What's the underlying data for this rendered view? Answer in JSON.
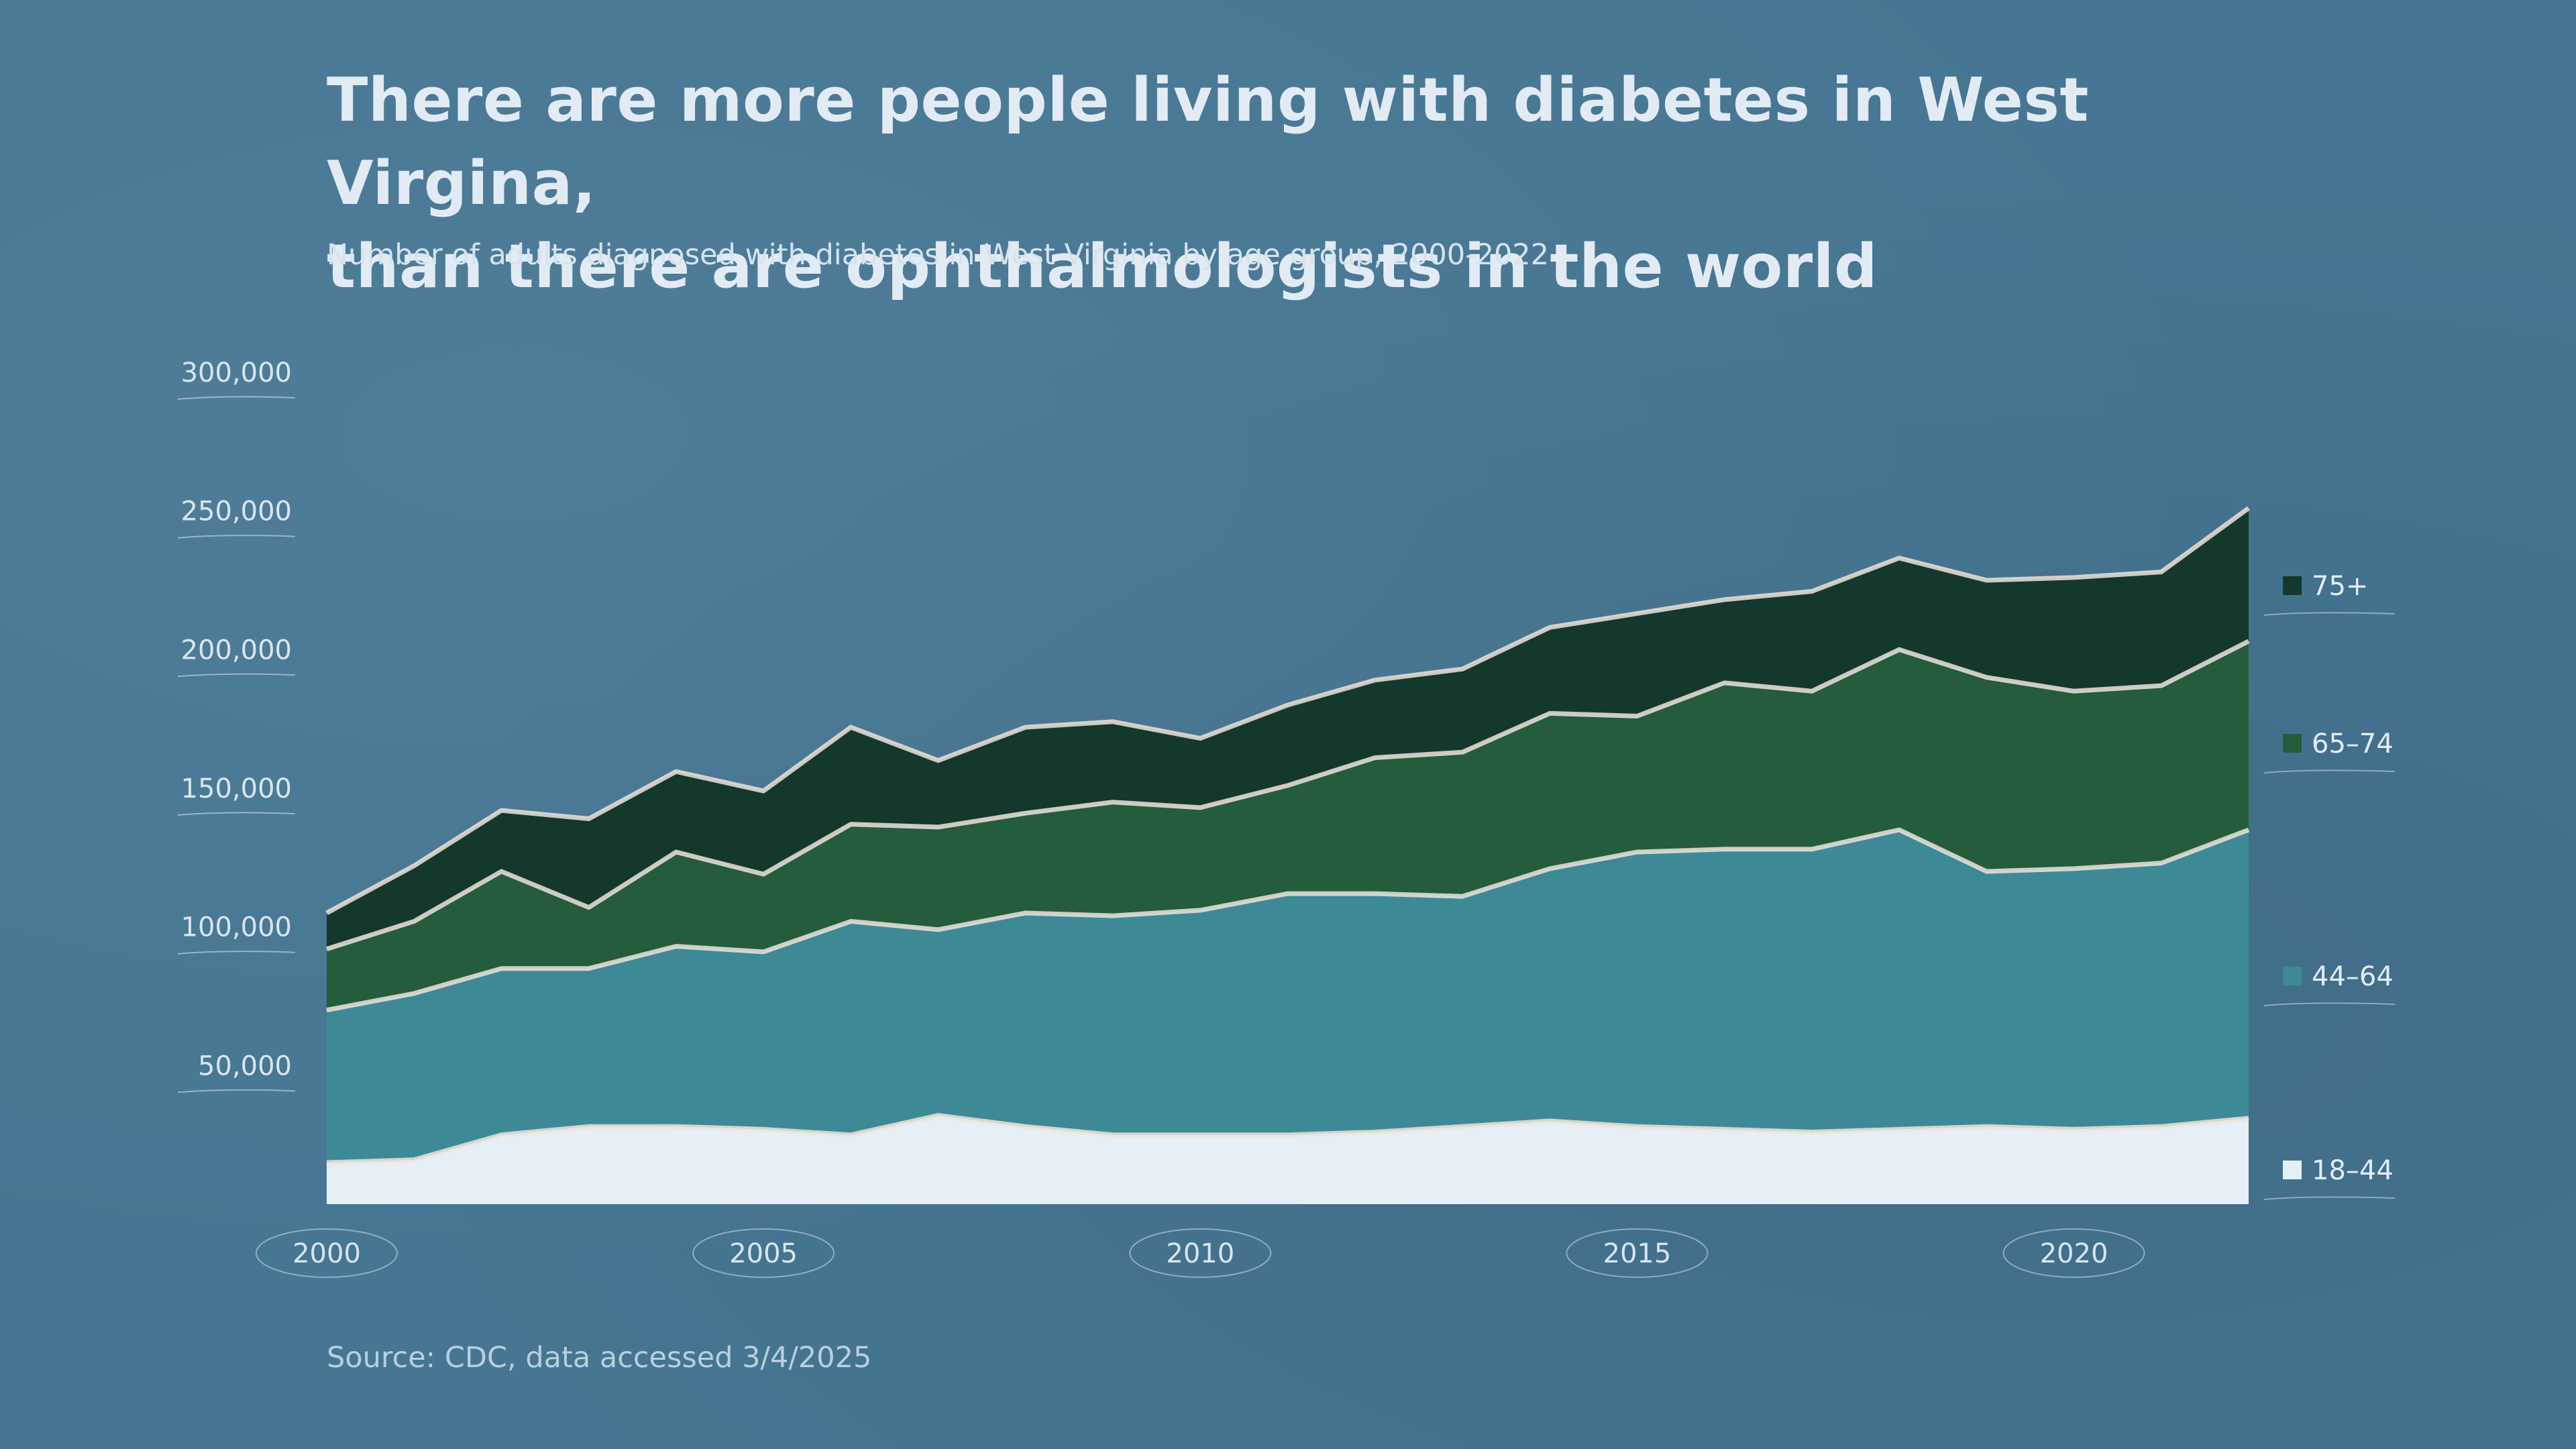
{
  "title_line1": "There are more people living with diabetes in West Virgina,",
  "title_line2": "than there are ophthalmologists in the world",
  "subtitle": "Number of adults diagnosed with diabetes in West Virginia by age group, 2000-2022",
  "source": "Source: CDC, data accessed 3/4/2025",
  "colors": {
    "background": "#467693",
    "18–44": "#e6eff6",
    "44–64": "#3d8a96",
    "65–74": "#245c3c",
    "75+": "#14382b",
    "edge": "#ece3dc"
  },
  "chart_data": {
    "type": "area",
    "stacked": true,
    "x": [
      2000,
      2001,
      2002,
      2003,
      2004,
      2005,
      2006,
      2007,
      2008,
      2009,
      2010,
      2011,
      2012,
      2013,
      2014,
      2015,
      2016,
      2017,
      2018,
      2019,
      2020,
      2021,
      2022
    ],
    "series": [
      {
        "name": "18–44",
        "values": [
          15000,
          16000,
          25000,
          28000,
          28000,
          27000,
          25000,
          32000,
          28000,
          25000,
          25000,
          25000,
          26000,
          28000,
          30000,
          28000,
          27000,
          26000,
          27000,
          28000,
          27000,
          28000,
          31000
        ]
      },
      {
        "name": "44–64",
        "values": [
          55000,
          60000,
          60000,
          57000,
          65000,
          64000,
          77000,
          67000,
          77000,
          79000,
          81000,
          87000,
          86000,
          83000,
          91000,
          99000,
          101000,
          102000,
          108000,
          92000,
          94000,
          95000,
          104000
        ]
      },
      {
        "name": "65–74",
        "values": [
          22000,
          26000,
          35000,
          22000,
          34000,
          28000,
          35000,
          37000,
          36000,
          41000,
          37000,
          39000,
          49000,
          52000,
          56000,
          49000,
          60000,
          57000,
          65000,
          70000,
          64000,
          64000,
          68000
        ]
      },
      {
        "name": "75+",
        "values": [
          13000,
          20000,
          22000,
          32000,
          29000,
          30000,
          35000,
          24000,
          31000,
          29000,
          25000,
          29000,
          28000,
          30000,
          31000,
          37000,
          30000,
          36000,
          33000,
          35000,
          41000,
          41000,
          48000
        ]
      }
    ],
    "y_ticks": [
      "50,000",
      "100,000",
      "150,000",
      "200,000",
      "250,000",
      "300,000"
    ],
    "x_ticks": [
      "2000",
      "2005",
      "2010",
      "2015",
      "2020"
    ],
    "ylim": [
      0,
      300000
    ],
    "xlim": [
      2000,
      2022
    ],
    "legend_placement": "right",
    "legend_order": [
      "75+",
      "65–74",
      "44–64",
      "18–44"
    ],
    "grid": false
  }
}
